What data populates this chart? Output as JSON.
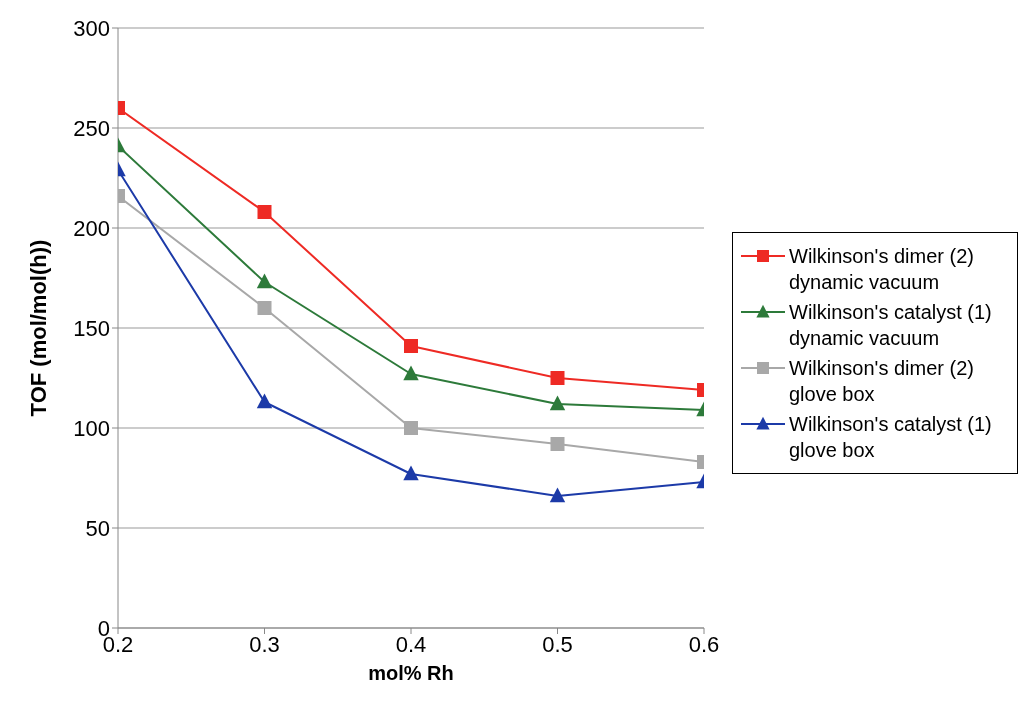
{
  "chart_data": {
    "type": "line",
    "xlabel": "mol% Rh",
    "ylabel": "TOF (mol/mol(h))",
    "x": [
      0.2,
      0.3,
      0.4,
      0.5,
      0.6
    ],
    "xlim": [
      0.2,
      0.6
    ],
    "xticks": [
      0.2,
      0.3,
      0.4,
      0.5,
      0.6
    ],
    "ylim": [
      0,
      300
    ],
    "yticks": [
      0,
      50,
      100,
      150,
      200,
      250,
      300
    ],
    "grid": "y",
    "legend": "right",
    "line_style": "solid",
    "series": [
      {
        "name": "Wilkinson's dimer (2) dynamic vacuum",
        "color": "#ee2a24",
        "marker": "square",
        "values": [
          260,
          208,
          141,
          125,
          119
        ]
      },
      {
        "name": "Wilkinson's catalyst (1) dynamic vacuum",
        "color": "#2d7a3a",
        "marker": "triangle",
        "values": [
          241,
          173,
          127,
          112,
          109
        ]
      },
      {
        "name": "Wilkinson's dimer (2) glove box",
        "color": "#a8a8a8",
        "marker": "square",
        "values": [
          216,
          160,
          100,
          92,
          83
        ]
      },
      {
        "name": "Wilkinson's catalyst (1) glove box",
        "color": "#1c3aa8",
        "marker": "triangle",
        "values": [
          229,
          113,
          77,
          66,
          73
        ]
      }
    ]
  }
}
